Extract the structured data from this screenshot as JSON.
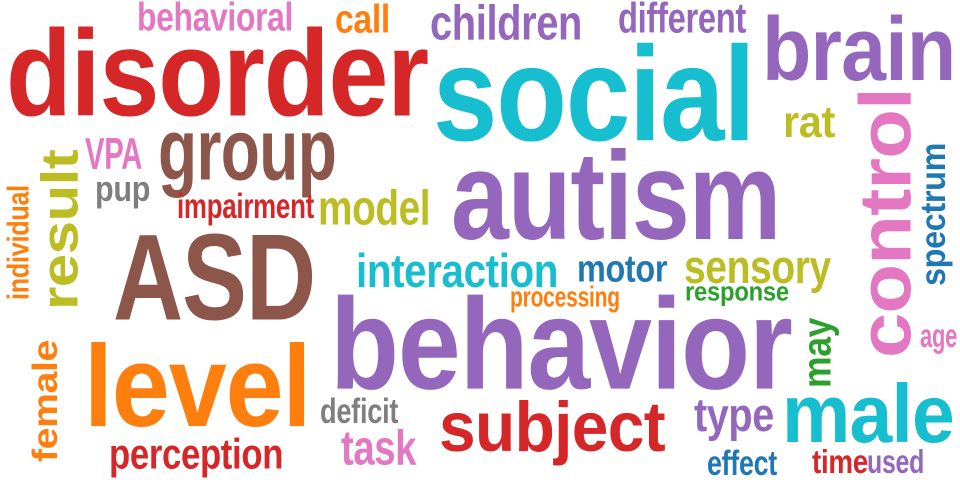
{
  "palette": {
    "red": "#d62728",
    "cyan": "#17becf",
    "purple": "#9467bd",
    "brown": "#8c564b",
    "olive": "#bcbd22",
    "pink": "#e377c2",
    "orange": "#ff7f0e",
    "blue": "#1f77b4",
    "green": "#2ca02c",
    "gray": "#7f7f7f"
  },
  "words": [
    {
      "text": "autism",
      "color": "purple",
      "orientation": "horizontal"
    },
    {
      "text": "behavior",
      "color": "purple",
      "orientation": "horizontal"
    },
    {
      "text": "social",
      "color": "cyan",
      "orientation": "horizontal"
    },
    {
      "text": "disorder",
      "color": "red",
      "orientation": "horizontal"
    },
    {
      "text": "ASD",
      "color": "brown",
      "orientation": "horizontal"
    },
    {
      "text": "level",
      "color": "orange",
      "orientation": "horizontal"
    },
    {
      "text": "brain",
      "color": "purple",
      "orientation": "horizontal"
    },
    {
      "text": "control",
      "color": "pink",
      "orientation": "vertical"
    },
    {
      "text": "group",
      "color": "brown",
      "orientation": "horizontal"
    },
    {
      "text": "male",
      "color": "cyan",
      "orientation": "horizontal"
    },
    {
      "text": "subject",
      "color": "red",
      "orientation": "horizontal"
    },
    {
      "text": "result",
      "color": "olive",
      "orientation": "vertical"
    },
    {
      "text": "interaction",
      "color": "cyan",
      "orientation": "horizontal"
    },
    {
      "text": "sensory",
      "color": "olive",
      "orientation": "horizontal"
    },
    {
      "text": "children",
      "color": "purple",
      "orientation": "horizontal"
    },
    {
      "text": "model",
      "color": "olive",
      "orientation": "horizontal"
    },
    {
      "text": "perception",
      "color": "red",
      "orientation": "horizontal"
    },
    {
      "text": "task",
      "color": "pink",
      "orientation": "horizontal"
    },
    {
      "text": "type",
      "color": "purple",
      "orientation": "horizontal"
    },
    {
      "text": "motor",
      "color": "blue",
      "orientation": "horizontal"
    },
    {
      "text": "spectrum",
      "color": "blue",
      "orientation": "vertical"
    },
    {
      "text": "behavioral",
      "color": "pink",
      "orientation": "horizontal"
    },
    {
      "text": "different",
      "color": "purple",
      "orientation": "horizontal"
    },
    {
      "text": "female",
      "color": "orange",
      "orientation": "vertical"
    },
    {
      "text": "rat",
      "color": "olive",
      "orientation": "horizontal"
    },
    {
      "text": "call",
      "color": "orange",
      "orientation": "horizontal"
    },
    {
      "text": "may",
      "color": "green",
      "orientation": "vertical"
    },
    {
      "text": "VPA",
      "color": "pink",
      "orientation": "horizontal"
    },
    {
      "text": "impairment",
      "color": "red",
      "orientation": "horizontal"
    },
    {
      "text": "deficit",
      "color": "gray",
      "orientation": "horizontal"
    },
    {
      "text": "pup",
      "color": "gray",
      "orientation": "horizontal"
    },
    {
      "text": "effect",
      "color": "blue",
      "orientation": "horizontal"
    },
    {
      "text": "time",
      "color": "red",
      "orientation": "horizontal"
    },
    {
      "text": "used",
      "color": "purple",
      "orientation": "horizontal"
    },
    {
      "text": "response",
      "color": "green",
      "orientation": "horizontal"
    },
    {
      "text": "processing",
      "color": "orange",
      "orientation": "horizontal"
    },
    {
      "text": "individual",
      "color": "orange",
      "orientation": "vertical"
    },
    {
      "text": "age",
      "color": "pink",
      "orientation": "horizontal"
    }
  ]
}
